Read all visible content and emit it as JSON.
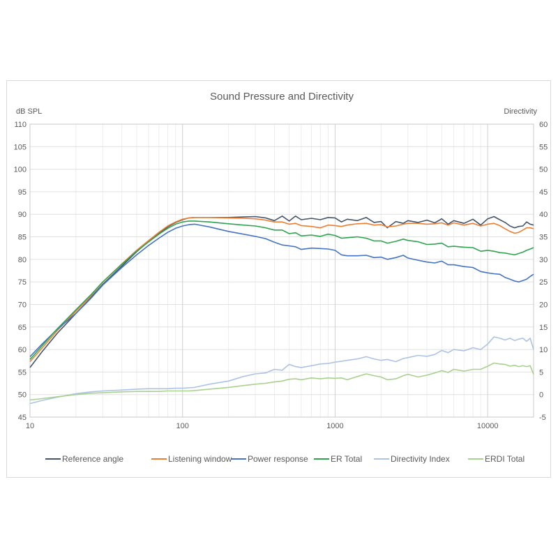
{
  "chart_data": {
    "type": "line",
    "title": "Sound Pressure and Directivity",
    "y_label": "dB SPL",
    "y2_label": "Directivity",
    "x_scale": "log",
    "xlim": [
      10,
      20000
    ],
    "ylim": [
      45,
      110
    ],
    "y2lim": [
      -5,
      60
    ],
    "x_ticks": [
      10,
      100,
      1000,
      10000
    ],
    "x_tick_labels": [
      "10",
      "100",
      "1000",
      "10000"
    ],
    "y_ticks": [
      45,
      50,
      55,
      60,
      65,
      70,
      75,
      80,
      85,
      90,
      95,
      100,
      105,
      110
    ],
    "y2_ticks": [
      -5,
      0,
      5,
      10,
      15,
      20,
      25,
      30,
      35,
      40,
      45,
      50,
      55,
      60
    ],
    "grid": true,
    "legend_position": "bottom",
    "series": [
      {
        "name": "Reference angle",
        "color": "#44546a",
        "axis": "left",
        "x": [
          10,
          12,
          15,
          20,
          25,
          30,
          40,
          50,
          60,
          70,
          80,
          90,
          100,
          110,
          120,
          150,
          200,
          250,
          300,
          350,
          400,
          450,
          500,
          550,
          600,
          700,
          800,
          900,
          1000,
          1100,
          1200,
          1400,
          1600,
          1800,
          2000,
          2200,
          2500,
          2800,
          3000,
          3500,
          4000,
          4500,
          5000,
          5500,
          6000,
          7000,
          8000,
          9000,
          10000,
          11000,
          12000,
          13000,
          14000,
          15000,
          16000,
          17000,
          18000,
          19000,
          20000
        ],
        "values": [
          56,
          59.5,
          63.5,
          68,
          71.5,
          74.5,
          78.5,
          81.7,
          84,
          85.8,
          87.2,
          88.2,
          88.8,
          89.2,
          89.3,
          89.3,
          89.3,
          89.4,
          89.5,
          89.2,
          88.6,
          89.6,
          88.5,
          89.6,
          88.8,
          89.1,
          88.8,
          89.3,
          89.2,
          88.3,
          88.9,
          88.6,
          89.3,
          88.2,
          88.4,
          87.0,
          88.4,
          88.0,
          88.6,
          88.2,
          88.7,
          88.1,
          89.0,
          87.8,
          88.6,
          88.0,
          88.9,
          87.6,
          89.0,
          89.5,
          88.8,
          88.2,
          87.4,
          87.0,
          87.3,
          87.4,
          88.3,
          87.8,
          87.6
        ]
      },
      {
        "name": "Listening window",
        "color": "#ed7d31",
        "axis": "left",
        "x": [
          10,
          12,
          15,
          20,
          25,
          30,
          40,
          50,
          60,
          70,
          80,
          90,
          100,
          110,
          120,
          150,
          200,
          250,
          300,
          350,
          400,
          450,
          500,
          550,
          600,
          700,
          800,
          900,
          1000,
          1100,
          1200,
          1400,
          1600,
          1800,
          2000,
          2200,
          2500,
          2800,
          3000,
          3500,
          4000,
          4500,
          5000,
          5500,
          6000,
          7000,
          8000,
          9000,
          10000,
          11000,
          12000,
          13000,
          14000,
          15000,
          16000,
          17000,
          18000,
          19000,
          20000
        ],
        "values": [
          57.3,
          60.3,
          64.1,
          68.5,
          71.9,
          75.0,
          79.0,
          82.0,
          84.2,
          86.0,
          87.4,
          88.3,
          88.9,
          89.2,
          89.3,
          89.3,
          89.2,
          89.1,
          89.0,
          88.7,
          88.3,
          88.3,
          87.8,
          88.0,
          87.5,
          87.3,
          87.0,
          87.6,
          87.5,
          87.3,
          87.6,
          87.9,
          88.0,
          87.6,
          87.7,
          87.2,
          87.4,
          87.8,
          88.0,
          88.0,
          87.8,
          87.9,
          88.1,
          87.6,
          88.1,
          87.6,
          88.0,
          87.4,
          87.8,
          88.0,
          87.5,
          86.8,
          86.2,
          85.8,
          86.0,
          86.5,
          87.0,
          87.0,
          86.8
        ]
      },
      {
        "name": "Power response",
        "color": "#4472c4",
        "axis": "left",
        "x": [
          10,
          12,
          15,
          20,
          25,
          30,
          40,
          50,
          60,
          70,
          80,
          90,
          100,
          110,
          120,
          150,
          200,
          250,
          300,
          350,
          400,
          450,
          500,
          550,
          600,
          700,
          800,
          900,
          1000,
          1100,
          1200,
          1400,
          1600,
          1800,
          2000,
          2200,
          2500,
          2800,
          3000,
          3500,
          4000,
          4500,
          5000,
          5500,
          6000,
          7000,
          8000,
          9000,
          10000,
          11000,
          12000,
          13000,
          14000,
          15000,
          16000,
          17000,
          18000,
          19000,
          20000
        ],
        "values": [
          58.4,
          61.2,
          64.4,
          68.0,
          71.3,
          74.3,
          78.2,
          81.0,
          83.1,
          84.7,
          86.0,
          86.9,
          87.4,
          87.7,
          87.8,
          87.2,
          86.2,
          85.6,
          85.1,
          84.6,
          83.8,
          83.2,
          83.0,
          82.8,
          82.2,
          82.5,
          82.4,
          82.3,
          82.0,
          81.0,
          80.8,
          80.8,
          80.9,
          80.4,
          80.5,
          80.0,
          80.4,
          80.9,
          80.3,
          79.8,
          79.4,
          79.2,
          79.6,
          78.8,
          78.8,
          78.4,
          78.2,
          77.3,
          77.0,
          76.8,
          76.7,
          76.0,
          75.6,
          75.2,
          75.0,
          75.3,
          75.6,
          76.2,
          76.7
        ]
      },
      {
        "name": "ER Total",
        "color": "#2ea44f",
        "axis": "left",
        "x": [
          10,
          12,
          15,
          20,
          25,
          30,
          40,
          50,
          60,
          70,
          80,
          90,
          100,
          110,
          120,
          150,
          200,
          250,
          300,
          350,
          400,
          450,
          500,
          550,
          600,
          700,
          800,
          900,
          1000,
          1100,
          1200,
          1400,
          1600,
          1800,
          2000,
          2200,
          2500,
          2800,
          3000,
          3500,
          4000,
          4500,
          5000,
          5500,
          6000,
          7000,
          8000,
          9000,
          10000,
          11000,
          12000,
          13000,
          14000,
          15000,
          16000,
          17000,
          18000,
          19000,
          20000
        ],
        "values": [
          57.8,
          60.8,
          64.5,
          68.8,
          72.1,
          75.0,
          78.9,
          81.8,
          83.9,
          85.6,
          86.9,
          87.8,
          88.3,
          88.5,
          88.5,
          88.3,
          87.9,
          87.6,
          87.4,
          87.0,
          86.5,
          86.5,
          85.7,
          85.9,
          85.2,
          85.4,
          85.1,
          85.6,
          85.3,
          84.7,
          84.8,
          85.0,
          84.7,
          84.1,
          84.1,
          83.6,
          84.0,
          84.5,
          84.2,
          83.9,
          83.3,
          83.4,
          83.6,
          82.8,
          82.9,
          82.7,
          82.6,
          81.8,
          82.0,
          81.8,
          81.5,
          81.4,
          81.2,
          81.0,
          81.3,
          81.6,
          82.0,
          82.3,
          82.6
        ]
      },
      {
        "name": "Directivity Index",
        "color": "#adc3e6",
        "axis": "right",
        "x": [
          10,
          12,
          15,
          20,
          25,
          30,
          40,
          50,
          60,
          70,
          80,
          90,
          100,
          110,
          120,
          150,
          200,
          250,
          300,
          350,
          400,
          450,
          500,
          550,
          600,
          700,
          800,
          900,
          1000,
          1100,
          1200,
          1400,
          1600,
          1800,
          2000,
          2200,
          2500,
          2800,
          3000,
          3500,
          4000,
          4500,
          5000,
          5500,
          6000,
          7000,
          8000,
          9000,
          10000,
          11000,
          12000,
          13000,
          14000,
          15000,
          16000,
          17000,
          18000,
          19000,
          20000
        ],
        "values": [
          -2.0,
          -1.3,
          -0.6,
          0.2,
          0.6,
          0.8,
          1.0,
          1.2,
          1.3,
          1.3,
          1.3,
          1.4,
          1.4,
          1.5,
          1.6,
          2.3,
          3.0,
          4.0,
          4.6,
          4.8,
          5.6,
          5.4,
          6.7,
          6.2,
          6.0,
          6.4,
          6.8,
          6.9,
          7.2,
          7.4,
          7.6,
          7.9,
          8.4,
          7.9,
          7.6,
          7.8,
          7.3,
          8.0,
          8.2,
          8.7,
          8.5,
          8.9,
          9.8,
          9.3,
          10.0,
          9.7,
          10.4,
          10.0,
          11.2,
          12.8,
          12.5,
          12.1,
          12.5,
          12.0,
          12.3,
          12.5,
          11.8,
          12.5,
          10.0
        ]
      },
      {
        "name": "ERDI Total",
        "color": "#a9d18e",
        "axis": "right",
        "x": [
          10,
          12,
          15,
          20,
          25,
          30,
          40,
          50,
          60,
          70,
          80,
          90,
          100,
          110,
          120,
          150,
          200,
          250,
          300,
          350,
          400,
          450,
          500,
          550,
          600,
          700,
          800,
          900,
          1000,
          1100,
          1200,
          1400,
          1600,
          1800,
          2000,
          2200,
          2500,
          2800,
          3000,
          3500,
          4000,
          4500,
          5000,
          5500,
          6000,
          7000,
          8000,
          9000,
          10000,
          11000,
          12000,
          13000,
          14000,
          15000,
          16000,
          17000,
          18000,
          19000,
          20000
        ],
        "values": [
          -1.2,
          -0.9,
          -0.5,
          0.0,
          0.3,
          0.4,
          0.6,
          0.7,
          0.7,
          0.7,
          0.8,
          0.8,
          0.8,
          0.8,
          0.9,
          1.2,
          1.6,
          2.0,
          2.3,
          2.5,
          2.8,
          3.0,
          3.4,
          3.5,
          3.3,
          3.7,
          3.5,
          3.7,
          3.6,
          3.7,
          3.3,
          4.0,
          4.6,
          4.2,
          3.9,
          3.3,
          3.5,
          4.2,
          4.5,
          3.9,
          4.3,
          4.8,
          5.3,
          4.9,
          5.6,
          5.2,
          5.6,
          5.6,
          6.3,
          7.0,
          6.8,
          6.7,
          6.3,
          6.5,
          6.2,
          6.4,
          6.2,
          6.4,
          4.5
        ]
      }
    ]
  }
}
